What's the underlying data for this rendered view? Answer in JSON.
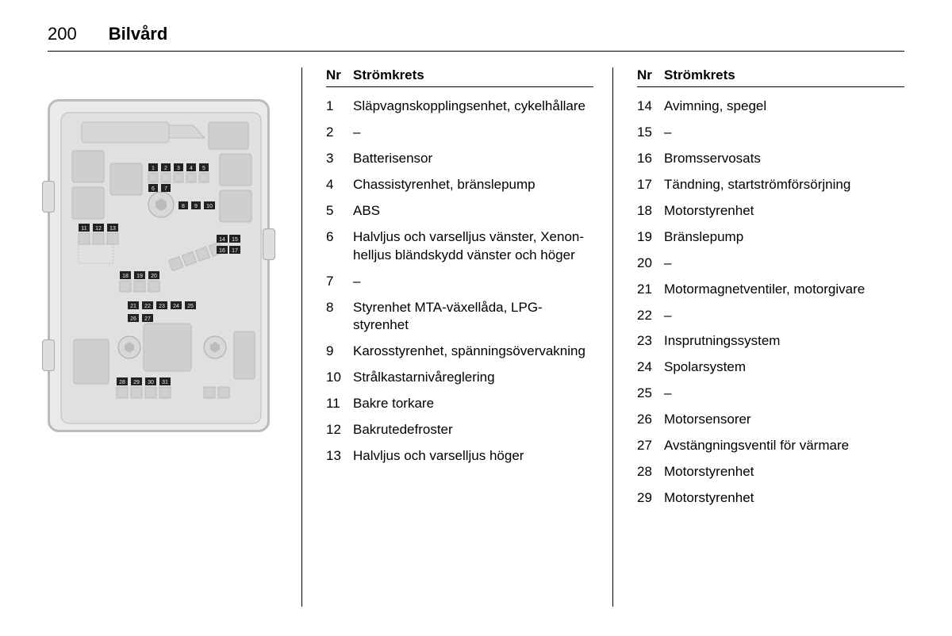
{
  "header": {
    "page_number": "200",
    "section_title": "Bilvård"
  },
  "table_headers": {
    "nr": "Nr",
    "circuit": "Strömkrets"
  },
  "left_table": [
    {
      "nr": "1",
      "desc": "Släpvagnskopplingsenhet, cykelhållare"
    },
    {
      "nr": "2",
      "desc": "–"
    },
    {
      "nr": "3",
      "desc": "Batterisensor"
    },
    {
      "nr": "4",
      "desc": "Chassistyrenhet, bränslepump"
    },
    {
      "nr": "5",
      "desc": "ABS"
    },
    {
      "nr": "6",
      "desc": "Halvljus och varselljus vänster, Xenon-helljus bländskydd vänster och höger"
    },
    {
      "nr": "7",
      "desc": "–"
    },
    {
      "nr": "8",
      "desc": "Styrenhet MTA-växellåda, LPG-styrenhet"
    },
    {
      "nr": "9",
      "desc": "Karosstyrenhet, spänningsövervakning"
    },
    {
      "nr": "10",
      "desc": "Strålkastarnivåreglering"
    },
    {
      "nr": "11",
      "desc": "Bakre torkare"
    },
    {
      "nr": "12",
      "desc": "Bakrutedefroster"
    },
    {
      "nr": "13",
      "desc": "Halvljus och varselljus höger"
    }
  ],
  "right_table": [
    {
      "nr": "14",
      "desc": "Avimning, spegel"
    },
    {
      "nr": "15",
      "desc": "–"
    },
    {
      "nr": "16",
      "desc": "Bromsservosats"
    },
    {
      "nr": "17",
      "desc": "Tändning, startströmförsörjning"
    },
    {
      "nr": "18",
      "desc": "Motorstyrenhet"
    },
    {
      "nr": "19",
      "desc": "Bränslepump"
    },
    {
      "nr": "20",
      "desc": "–"
    },
    {
      "nr": "21",
      "desc": "Motormagnetventiler, motorgivare"
    },
    {
      "nr": "22",
      "desc": "–"
    },
    {
      "nr": "23",
      "desc": "Insprutningssystem"
    },
    {
      "nr": "24",
      "desc": "Spolarsystem"
    },
    {
      "nr": "25",
      "desc": "–"
    },
    {
      "nr": "26",
      "desc": "Motorsensorer"
    },
    {
      "nr": "27",
      "desc": "Avstängningsventil för värmare"
    },
    {
      "nr": "28",
      "desc": "Motorstyrenhet"
    },
    {
      "nr": "29",
      "desc": "Motorstyrenhet"
    }
  ],
  "fusebox_labels": [
    "1",
    "2",
    "3",
    "4",
    "5",
    "6",
    "7",
    "8",
    "9",
    "10",
    "11",
    "12",
    "13",
    "14",
    "15",
    "16",
    "17",
    "18",
    "19",
    "20",
    "21",
    "22",
    "23",
    "24",
    "25",
    "26",
    "27",
    "28",
    "29",
    "30",
    "31"
  ],
  "colors": {
    "text": "#000000",
    "bg": "#ffffff",
    "diagram_bg": "#eaeaea",
    "diagram_stroke": "#bbbbbb",
    "fuse_fill": "#cfcfcf",
    "fuse_num_bg": "#222222",
    "fuse_num_text": "#eeeeee"
  }
}
